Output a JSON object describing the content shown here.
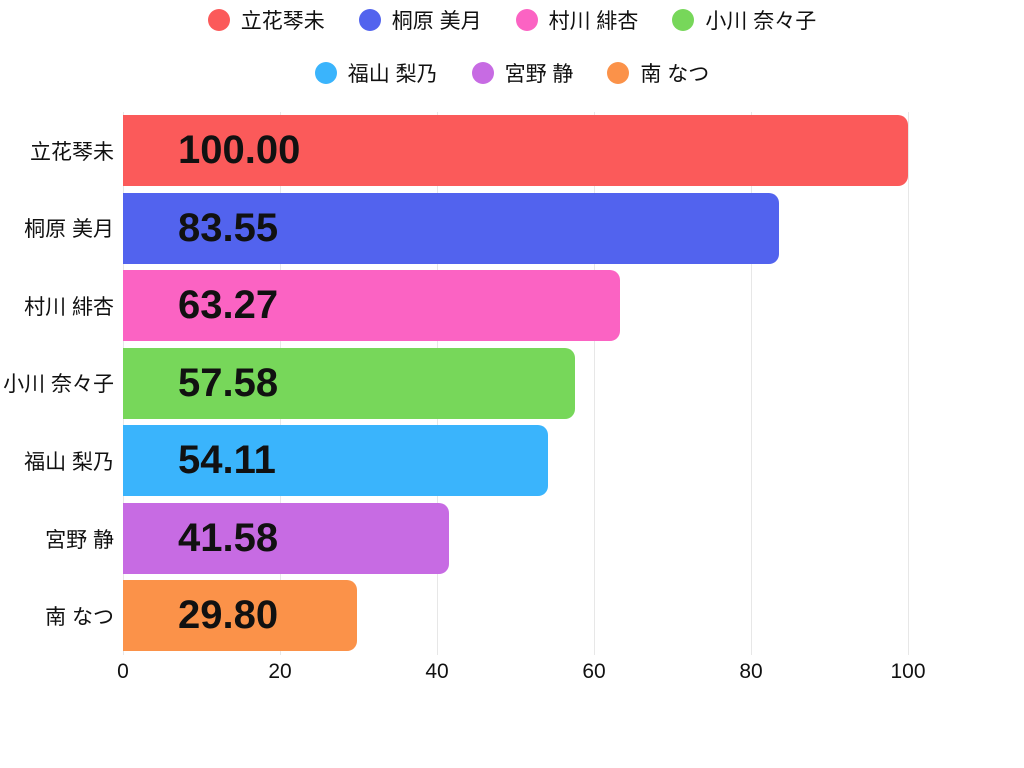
{
  "chart_data": {
    "type": "bar",
    "orientation": "horizontal",
    "title": "",
    "xlabel": "",
    "ylabel": "",
    "categories": [
      "立花琴未",
      "桐原 美月",
      "村川 緋杏",
      "小川 奈々子",
      "福山 梨乃",
      "宮野 静",
      "南 なつ"
    ],
    "values": [
      100.0,
      83.55,
      63.27,
      57.58,
      54.11,
      41.58,
      29.8
    ],
    "value_labels": [
      "100.00",
      "83.55",
      "63.27",
      "57.58",
      "54.11",
      "41.58",
      "29.80"
    ],
    "bar_colors": [
      "#fb5a5a",
      "#5263ee",
      "#fb63c3",
      "#77d75a",
      "#3ab4fc",
      "#c76be3",
      "#fb9249"
    ],
    "xlim": [
      0,
      100
    ],
    "x_ticks": [
      0,
      20,
      40,
      60,
      80,
      100
    ],
    "x_tick_labels": [
      "0",
      "20",
      "40",
      "60",
      "80",
      "100"
    ],
    "grid": "vertical",
    "legend_position": "top",
    "legend_rows": [
      [
        0,
        1,
        2,
        3
      ],
      [
        4,
        5,
        6
      ]
    ]
  },
  "colors": {
    "background": "#ffffff",
    "grid": "#e7e7e7",
    "text": "#111111"
  }
}
